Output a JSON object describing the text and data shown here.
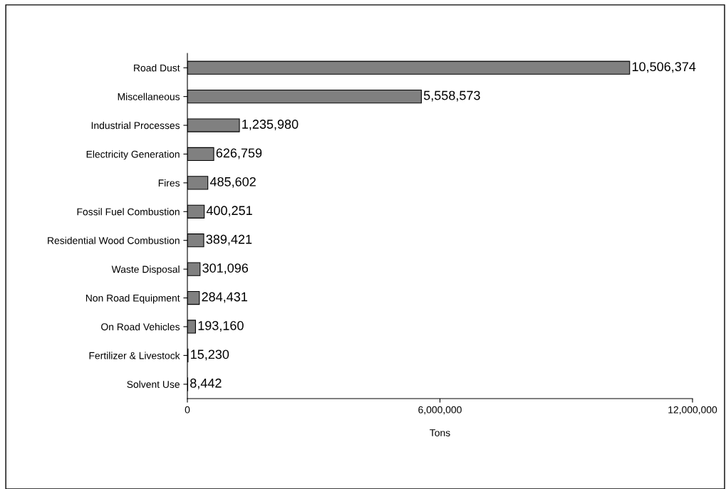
{
  "chart_data": {
    "type": "bar",
    "orientation": "horizontal",
    "xlabel": "Tons",
    "categories": [
      "Road Dust",
      "Miscellaneous",
      "Industrial Processes",
      "Electricity Generation",
      "Fires",
      "Fossil Fuel Combustion",
      "Residential Wood Combustion",
      "Waste Disposal",
      "Non Road Equipment",
      "On Road Vehicles",
      "Fertilizer & Livestock",
      "Solvent Use"
    ],
    "values": [
      10506374,
      5558573,
      1235980,
      626759,
      485602,
      400251,
      389421,
      301096,
      284431,
      193160,
      15230,
      8442
    ],
    "value_labels": [
      "10,506,374",
      "5,558,573",
      "1,235,980",
      "626,759",
      "485,602",
      "400,251",
      "389,421",
      "301,096",
      "284,431",
      "193,160",
      "15,230",
      "8,442"
    ],
    "color": "#808080",
    "xlim": [
      0,
      12000000
    ],
    "xticks": [
      0,
      {
        "value": 6000000,
        "label": "6,000,000"
      },
      {
        "value": 12000000,
        "label": "12,000,000"
      }
    ],
    "grid": false,
    "legend": false
  }
}
